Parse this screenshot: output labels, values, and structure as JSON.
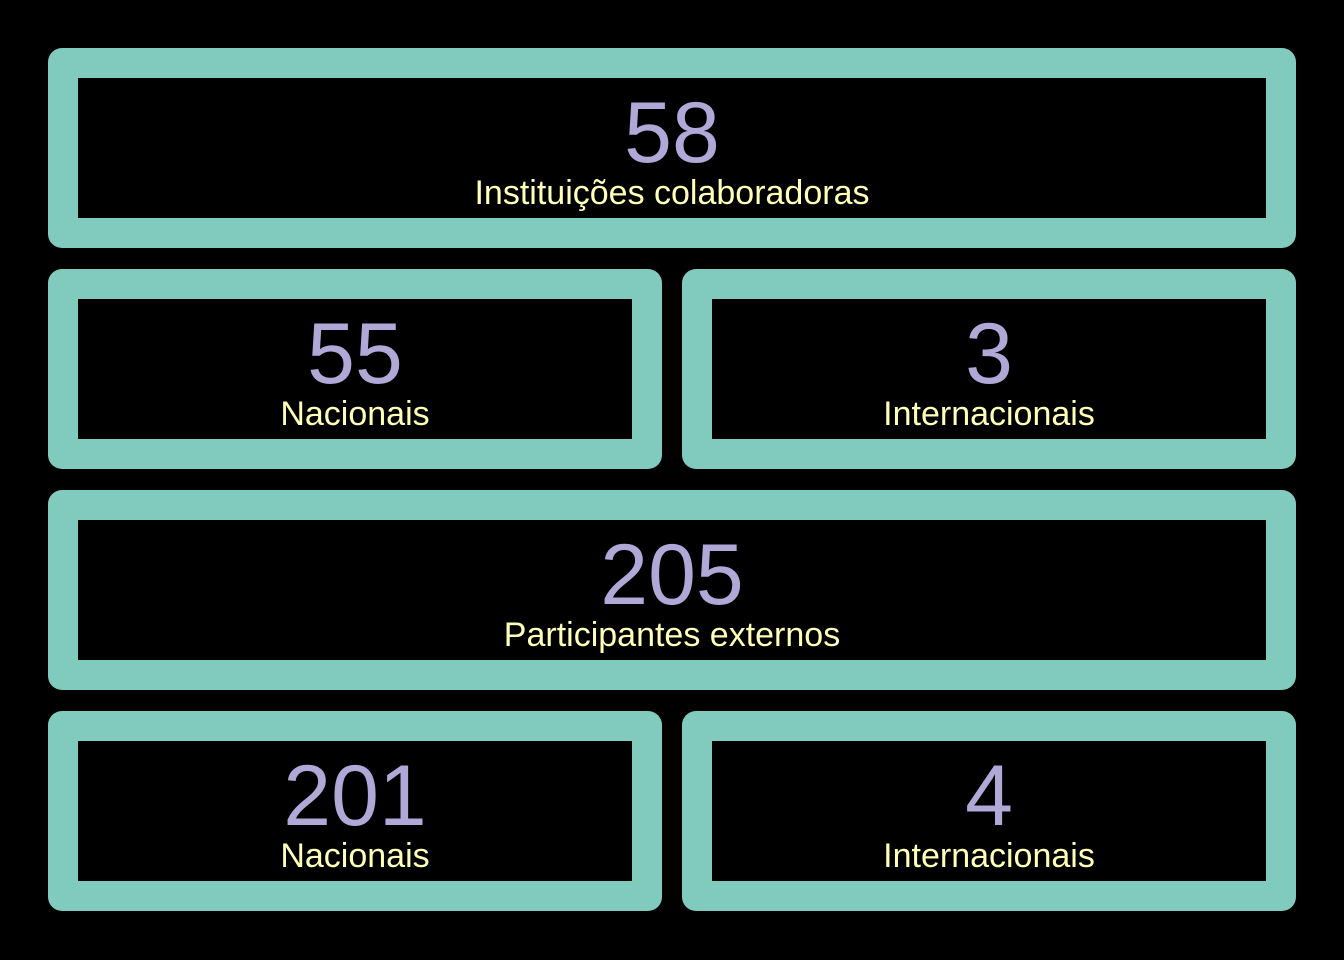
{
  "colors": {
    "background": "#000000",
    "card_border": "#80cbbd",
    "value_text": "#b0a8d6",
    "label_text": "#ffffb8"
  },
  "institutions": {
    "total": {
      "value": "58",
      "label": "Instituições colaboradoras"
    },
    "national": {
      "value": "55",
      "label": "Nacionais"
    },
    "international": {
      "value": "3",
      "label": "Internacionais"
    }
  },
  "participants": {
    "total": {
      "value": "205",
      "label": "Participantes externos"
    },
    "national": {
      "value": "201",
      "label": "Nacionais"
    },
    "international": {
      "value": "4",
      "label": "Internacionais"
    }
  }
}
